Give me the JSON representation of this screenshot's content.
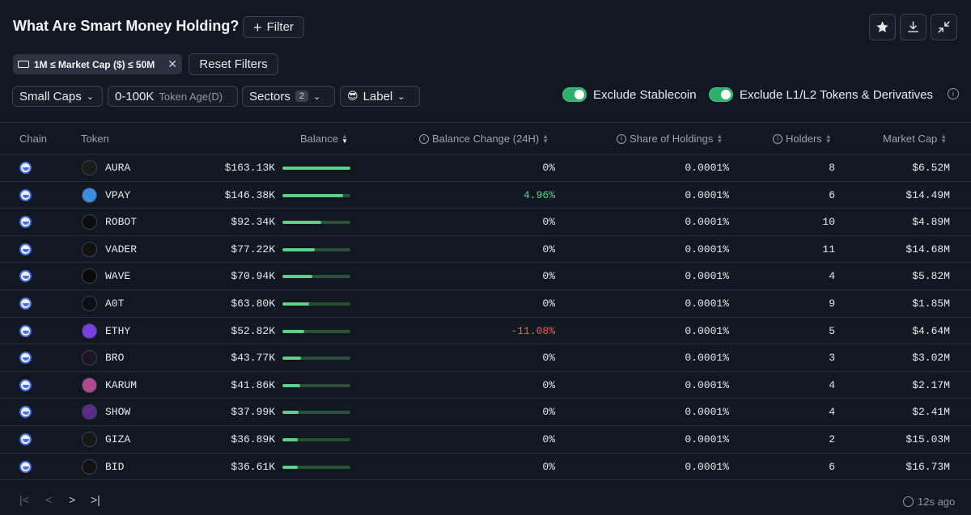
{
  "header": {
    "title": "What Are Smart Money Holding?",
    "filter_label": "Filter",
    "favorite_icon": "star-icon",
    "download_icon": "download-icon",
    "collapse_icon": "collapse-icon"
  },
  "active_filter": {
    "label": "1M ≤ Market Cap ($) ≤ 50M",
    "icon": "money-icon"
  },
  "reset_label": "Reset Filters",
  "filters": {
    "cap_select": "Small Caps",
    "age_value": "0-100K",
    "age_label": "Token Age(D)",
    "sectors_label": "Sectors",
    "sectors_count": "2",
    "label_select": "Label",
    "label_emoji": "😎"
  },
  "toggles": {
    "stablecoin": "Exclude Stablecoin",
    "l1l2": "Exclude L1/L2 Tokens & Derivatives"
  },
  "columns": {
    "chain": "Chain",
    "token": "Token",
    "balance": "Balance",
    "balance_change": "Balance Change (24H)",
    "share": "Share of Holdings",
    "holders": "Holders",
    "market_cap": "Market Cap"
  },
  "rows": [
    {
      "token": "AURA",
      "balance": "$163.13K",
      "bar": 1.0,
      "change": "0%",
      "change_dir": "flat",
      "share": "0.0001%",
      "holders": "8",
      "mcap": "$6.52M",
      "icon_color": "#1b1b1b"
    },
    {
      "token": "VPAY",
      "balance": "$146.38K",
      "bar": 0.897,
      "change": "4.96%",
      "change_dir": "up",
      "share": "0.0001%",
      "holders": "6",
      "mcap": "$14.49M",
      "icon_color": "#3d8de0"
    },
    {
      "token": "ROBOT",
      "balance": "$92.34K",
      "bar": 0.566,
      "change": "0%",
      "change_dir": "flat",
      "share": "0.0001%",
      "holders": "10",
      "mcap": "$4.89M",
      "icon_color": "#0d0d0d"
    },
    {
      "token": "VADER",
      "balance": "$77.22K",
      "bar": 0.473,
      "change": "0%",
      "change_dir": "flat",
      "share": "0.0001%",
      "holders": "11",
      "mcap": "$14.68M",
      "icon_color": "#111111"
    },
    {
      "token": "WAVE",
      "balance": "$70.94K",
      "bar": 0.435,
      "change": "0%",
      "change_dir": "flat",
      "share": "0.0001%",
      "holders": "4",
      "mcap": "$5.82M",
      "icon_color": "#0a0a0a"
    },
    {
      "token": "A0T",
      "balance": "$63.80K",
      "bar": 0.391,
      "change": "0%",
      "change_dir": "flat",
      "share": "0.0001%",
      "holders": "9",
      "mcap": "$1.85M",
      "icon_color": "#0c0c14"
    },
    {
      "token": "ETHY",
      "balance": "$52.82K",
      "bar": 0.324,
      "change": "-11.08%",
      "change_dir": "down",
      "share": "0.0001%",
      "holders": "5",
      "mcap": "$4.64M",
      "icon_color": "#7b3fe4"
    },
    {
      "token": "BRO",
      "balance": "$43.77K",
      "bar": 0.268,
      "change": "0%",
      "change_dir": "flat",
      "share": "0.0001%",
      "holders": "3",
      "mcap": "$3.02M",
      "icon_color": "#1a1424"
    },
    {
      "token": "KARUM",
      "balance": "$41.86K",
      "bar": 0.257,
      "change": "0%",
      "change_dir": "flat",
      "share": "0.0001%",
      "holders": "4",
      "mcap": "$2.17M",
      "icon_color": "#b04a8f"
    },
    {
      "token": "SHOW",
      "balance": "$37.99K",
      "bar": 0.233,
      "change": "0%",
      "change_dir": "flat",
      "share": "0.0001%",
      "holders": "4",
      "mcap": "$2.41M",
      "icon_color": "#5b2a8c"
    },
    {
      "token": "GIZA",
      "balance": "$36.89K",
      "bar": 0.226,
      "change": "0%",
      "change_dir": "flat",
      "share": "0.0001%",
      "holders": "2",
      "mcap": "$15.03M",
      "icon_color": "#161616"
    },
    {
      "token": "BID",
      "balance": "$36.61K",
      "bar": 0.224,
      "change": "0%",
      "change_dir": "flat",
      "share": "0.0001%",
      "holders": "6",
      "mcap": "$16.73M",
      "icon_color": "#121212"
    }
  ],
  "footer": {
    "updated": "12s ago"
  }
}
